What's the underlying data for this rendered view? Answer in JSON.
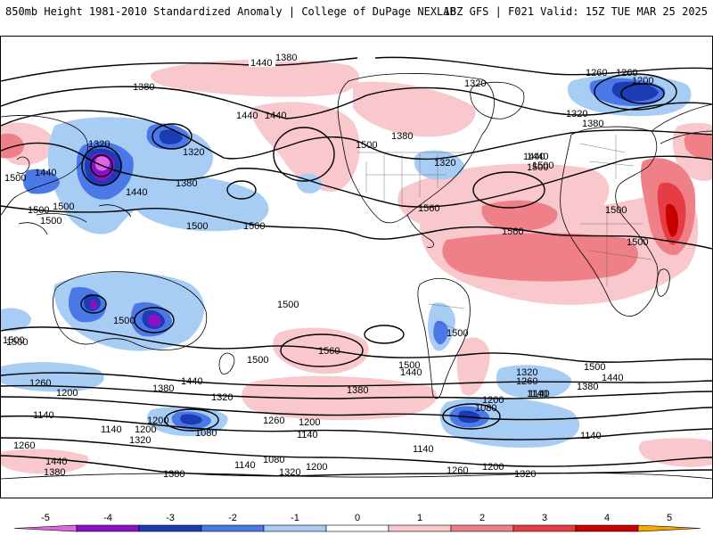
{
  "header": {
    "title_left": "850mb Height 1981-2010 Standardized Anomaly | College of DuPage NEXLAB",
    "title_right": "18Z GFS | F021 Valid: 15Z TUE MAR 25 2025"
  },
  "colorbar": {
    "ticks": [
      "-5",
      "-4",
      "-3",
      "-2",
      "-1",
      "0",
      "1",
      "2",
      "3",
      "4",
      "5"
    ],
    "colors": [
      "#e066e8",
      "#8c10c8",
      "#1c3cb4",
      "#4a78e6",
      "#a8cdf4",
      "#ffffff",
      "#f8c8cc",
      "#f08088",
      "#e83c44",
      "#c80000",
      "#f8a800"
    ]
  },
  "contour_labels": [
    {
      "id": "l1",
      "text": "1440"
    },
    {
      "id": "l2",
      "text": "1380"
    },
    {
      "id": "l3",
      "text": "1380"
    },
    {
      "id": "l4",
      "text": "1440"
    },
    {
      "id": "l5",
      "text": "1440"
    },
    {
      "id": "l6",
      "text": "1320"
    },
    {
      "id": "l7",
      "text": "1320"
    },
    {
      "id": "l8",
      "text": "1440"
    },
    {
      "id": "l9",
      "text": "1500"
    },
    {
      "id": "l10",
      "text": "1440"
    },
    {
      "id": "l11",
      "text": "1380"
    },
    {
      "id": "l12",
      "text": "1500"
    },
    {
      "id": "l13",
      "text": "1500"
    },
    {
      "id": "l14",
      "text": "1500"
    },
    {
      "id": "l15",
      "text": "1500"
    },
    {
      "id": "l16",
      "text": "1500"
    },
    {
      "id": "l17",
      "text": "1500"
    },
    {
      "id": "l18",
      "text": "1500"
    },
    {
      "id": "l19",
      "text": "1500"
    },
    {
      "id": "l20",
      "text": "1560"
    },
    {
      "id": "l21",
      "text": "1440"
    },
    {
      "id": "l22",
      "text": "1500"
    },
    {
      "id": "l23",
      "text": "1260"
    },
    {
      "id": "l24",
      "text": "1200"
    },
    {
      "id": "l25",
      "text": "1380"
    },
    {
      "id": "l26",
      "text": "1320"
    },
    {
      "id": "l27",
      "text": "1380"
    },
    {
      "id": "l28",
      "text": "1320"
    },
    {
      "id": "l29",
      "text": "1260"
    },
    {
      "id": "l30",
      "text": "1200"
    },
    {
      "id": "l31",
      "text": "1140"
    },
    {
      "id": "l32",
      "text": "1140"
    },
    {
      "id": "l33",
      "text": "1140"
    },
    {
      "id": "l34",
      "text": "1200"
    },
    {
      "id": "l35",
      "text": "1080"
    },
    {
      "id": "l36",
      "text": "1140"
    },
    {
      "id": "l37",
      "text": "1200"
    },
    {
      "id": "l38",
      "text": "1320"
    },
    {
      "id": "l39",
      "text": "1260"
    },
    {
      "id": "l40",
      "text": "1080"
    },
    {
      "id": "l41",
      "text": "1140"
    },
    {
      "id": "l42",
      "text": "1200"
    },
    {
      "id": "l43",
      "text": "1260"
    },
    {
      "id": "l44",
      "text": "1440"
    },
    {
      "id": "l45",
      "text": "1380"
    },
    {
      "id": "l46",
      "text": "1380"
    },
    {
      "id": "l47",
      "text": "1140"
    },
    {
      "id": "l48",
      "text": "1080"
    },
    {
      "id": "l49",
      "text": "1200"
    },
    {
      "id": "l50",
      "text": "1320"
    },
    {
      "id": "l51",
      "text": "1140"
    },
    {
      "id": "l52",
      "text": "1260"
    },
    {
      "id": "l53",
      "text": "1200"
    },
    {
      "id": "l54",
      "text": "1320"
    },
    {
      "id": "l55",
      "text": "1500"
    },
    {
      "id": "l56",
      "text": "1440"
    },
    {
      "id": "l57",
      "text": "1380"
    },
    {
      "id": "l58",
      "text": "1320"
    },
    {
      "id": "l59",
      "text": "1260"
    },
    {
      "id": "l60",
      "text": "1140"
    },
    {
      "id": "l61",
      "text": "1560"
    },
    {
      "id": "l62",
      "text": "1500"
    },
    {
      "id": "l63",
      "text": "1500"
    },
    {
      "id": "l64",
      "text": "1440"
    },
    {
      "id": "l65",
      "text": "1500"
    },
    {
      "id": "l66",
      "text": "1560"
    },
    {
      "id": "l67",
      "text": "1260"
    },
    {
      "id": "l68",
      "text": "1200"
    },
    {
      "id": "l69",
      "text": "1320"
    },
    {
      "id": "l70",
      "text": "1380"
    },
    {
      "id": "l71",
      "text": "1440"
    },
    {
      "id": "l72",
      "text": "1500"
    },
    {
      "id": "l73",
      "text": "1500"
    },
    {
      "id": "l74",
      "text": "1320"
    },
    {
      "id": "l75",
      "text": "1380"
    },
    {
      "id": "l76",
      "text": "1440"
    },
    {
      "id": "l77",
      "text": "1500"
    },
    {
      "id": "l78",
      "text": "1500"
    },
    {
      "id": "l79",
      "text": "1500"
    }
  ]
}
